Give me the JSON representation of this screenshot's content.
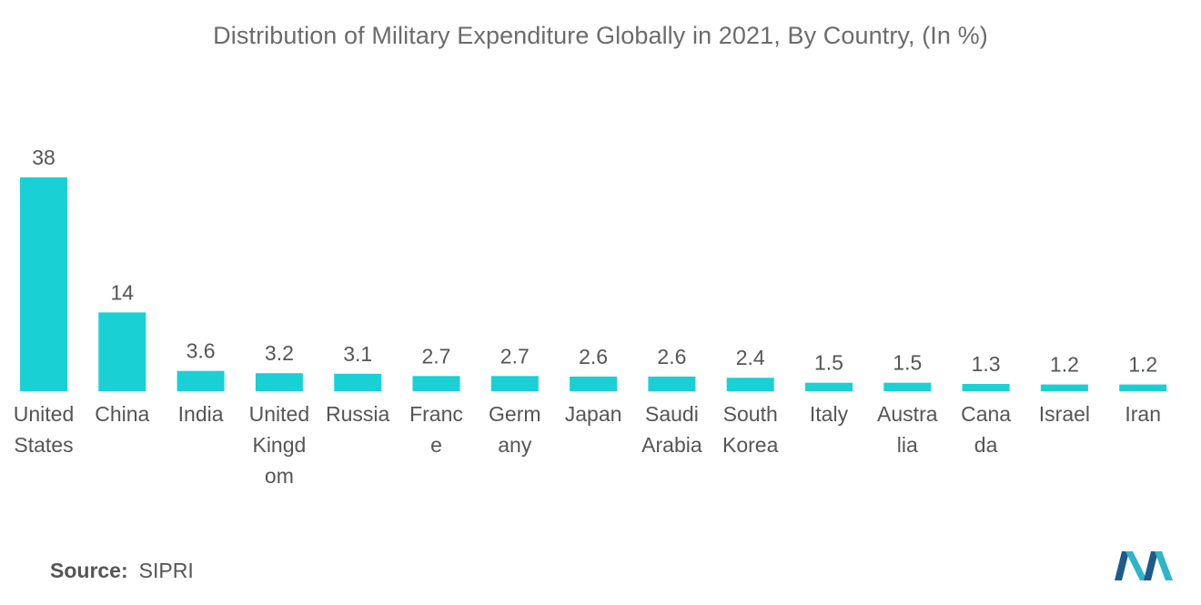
{
  "chart_data": {
    "type": "bar",
    "title": "Distribution of Military Expenditure Globally in 2021, By Country, (In %)",
    "categories": [
      [
        "United",
        "States"
      ],
      [
        "China"
      ],
      [
        "India"
      ],
      [
        "United",
        "Kingd",
        "om"
      ],
      [
        "Russia"
      ],
      [
        "Franc",
        "e"
      ],
      [
        "Germ",
        "any"
      ],
      [
        "Japan"
      ],
      [
        "Saudi",
        "Arabia"
      ],
      [
        "South",
        "Korea"
      ],
      [
        "Italy"
      ],
      [
        "Austra",
        "lia"
      ],
      [
        "Cana",
        "da"
      ],
      [
        "Israel"
      ],
      [
        "Iran"
      ]
    ],
    "values": [
      38,
      14,
      3.6,
      3.2,
      3.1,
      2.7,
      2.7,
      2.6,
      2.6,
      2.4,
      1.5,
      1.5,
      1.3,
      1.2,
      1.2
    ],
    "value_labels": [
      "38",
      "14",
      "3.6",
      "3.2",
      "3.1",
      "2.7",
      "2.7",
      "2.6",
      "2.6",
      "2.4",
      "1.5",
      "1.5",
      "1.3",
      "1.2",
      "1.2"
    ],
    "xlabel": "",
    "ylabel": "",
    "ylim": [
      0,
      38
    ],
    "grid": false,
    "legend": "none",
    "bar_color": "#19d1d4"
  },
  "footer": {
    "source_key": "Source:",
    "source_value": "SIPRI"
  },
  "logo": {
    "icon": "mordor-intelligence-logo",
    "colors": [
      "#1e5a8a",
      "#2fb5c8"
    ]
  }
}
